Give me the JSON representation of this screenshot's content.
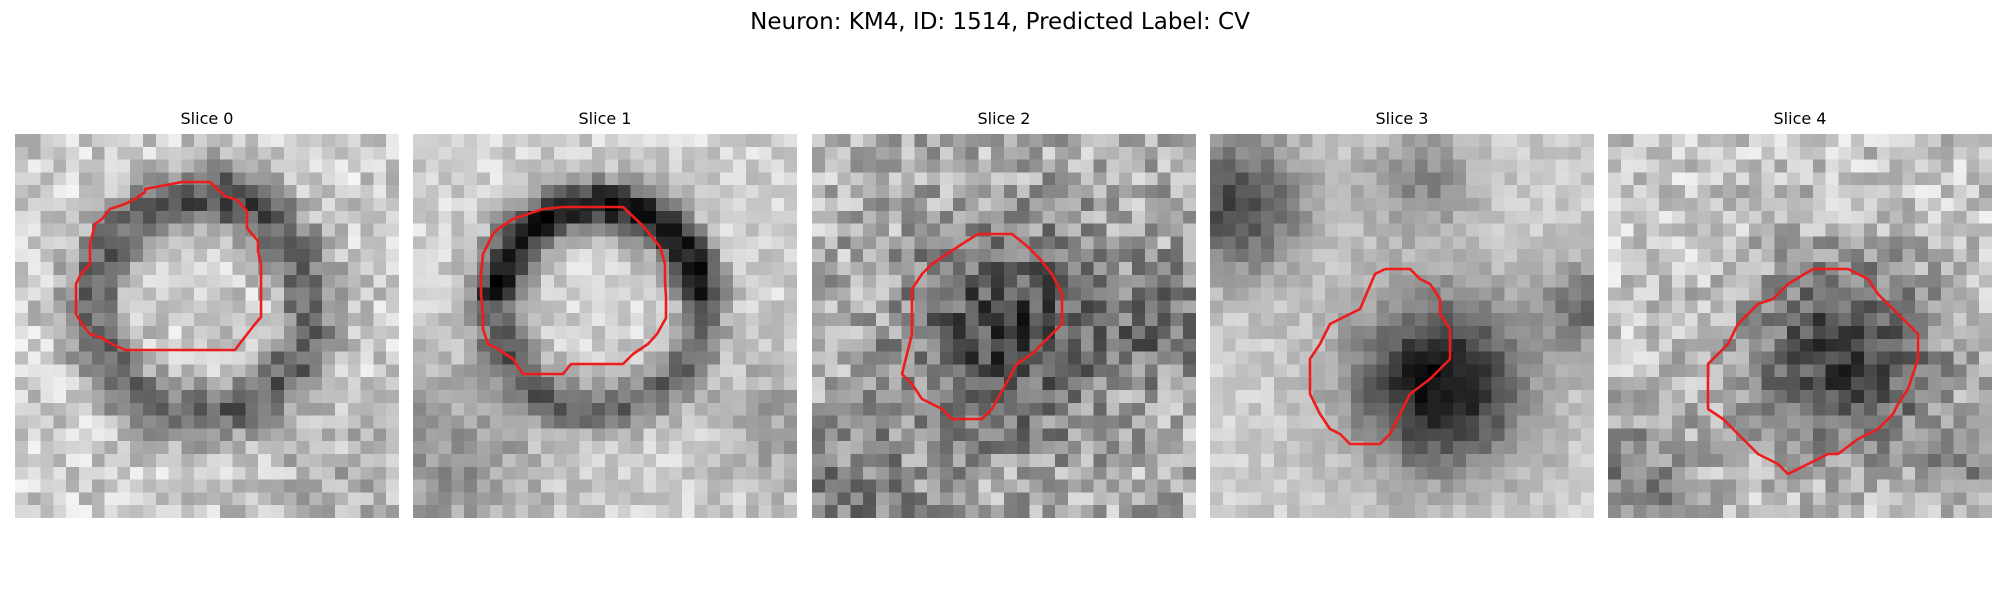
{
  "figure": {
    "title": "Neuron: KM4, ID: 1514, Predicted Label: CV"
  },
  "slices": [
    {
      "title": "Slice 0"
    },
    {
      "title": "Slice 1"
    },
    {
      "title": "Slice 2"
    },
    {
      "title": "Slice 3"
    },
    {
      "title": "Slice 4"
    }
  ],
  "colors": {
    "contour": "#ee1c1c",
    "background": "#ffffff"
  }
}
